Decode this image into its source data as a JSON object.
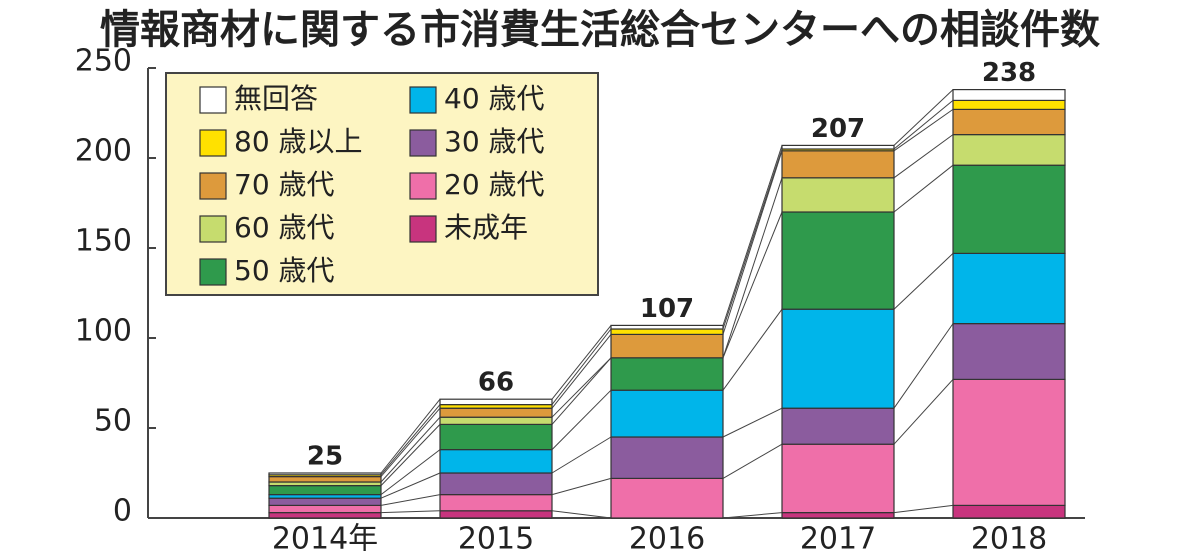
{
  "chart_data": {
    "type": "stacked_bar",
    "title": "情報商材に関する市消費生活総合センターへの相談件数",
    "categories": [
      "2014年",
      "2015",
      "2016",
      "2017",
      "2018"
    ],
    "totals": [
      25,
      66,
      107,
      207,
      238
    ],
    "series": [
      {
        "name": "未成年",
        "color": "#c8347e",
        "values": [
          3,
          4,
          0,
          3,
          7
        ]
      },
      {
        "name": "20 歳代",
        "color": "#ef6fa9",
        "values": [
          4,
          9,
          22,
          38,
          70
        ]
      },
      {
        "name": "30 歳代",
        "color": "#8b5c9e",
        "values": [
          4,
          12,
          23,
          20,
          31
        ]
      },
      {
        "name": "40 歳代",
        "color": "#00b5ea",
        "values": [
          2,
          13,
          26,
          55,
          39
        ]
      },
      {
        "name": "50 歳代",
        "color": "#2f9a4c",
        "values": [
          5,
          14,
          18,
          54,
          49
        ]
      },
      {
        "name": "60 歳代",
        "color": "#c6dc6e",
        "values": [
          2,
          4,
          0,
          19,
          17
        ]
      },
      {
        "name": "70 歳代",
        "color": "#dd9a3c",
        "values": [
          3,
          5,
          13,
          15,
          14
        ]
      },
      {
        "name": "80 歳以上",
        "color": "#ffe100",
        "values": [
          1,
          2,
          3,
          1,
          5
        ]
      },
      {
        "name": "無回答",
        "color": "#ffffff",
        "values": [
          1,
          3,
          2,
          2,
          6
        ]
      }
    ],
    "ylim": [
      0,
      250
    ],
    "yticks": [
      0,
      50,
      100,
      150,
      200,
      250
    ],
    "grid": false
  }
}
